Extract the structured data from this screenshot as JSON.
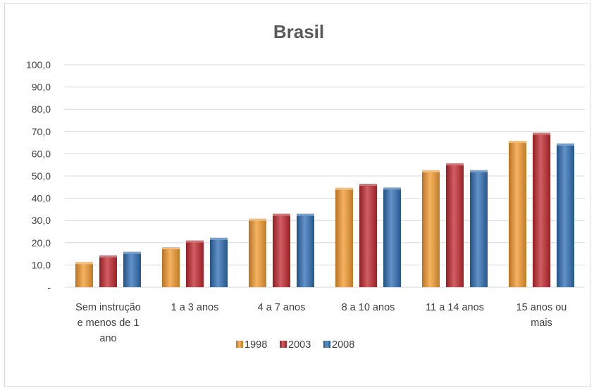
{
  "chart_data": {
    "type": "bar",
    "title": "Brasil",
    "categories": [
      [
        "Sem instrução",
        "e menos de 1",
        "ano"
      ],
      [
        "1 a 3 anos"
      ],
      [
        "4 a 7 anos"
      ],
      [
        "8 a 10 anos"
      ],
      [
        "11 a 14 anos"
      ],
      [
        "15 anos ou",
        "mais"
      ]
    ],
    "series": [
      {
        "name": "1998",
        "color": "#F29A2E",
        "values": [
          11.3,
          18.0,
          30.8,
          44.7,
          52.6,
          65.8
        ]
      },
      {
        "name": "2003",
        "color": "#C0282D",
        "values": [
          14.3,
          21.0,
          33.0,
          46.5,
          55.7,
          69.4
        ]
      },
      {
        "name": "2008",
        "color": "#2E6DB4",
        "values": [
          15.9,
          22.2,
          33.0,
          44.8,
          52.6,
          64.6
        ]
      }
    ],
    "ylim": [
      0,
      100
    ],
    "yticks": [
      "-",
      "10,0",
      "20,0",
      "30,0",
      "40,0",
      "50,0",
      "60,0",
      "70,0",
      "80,0",
      "90,0",
      "100,0"
    ],
    "grid": true,
    "legend_position": "bottom",
    "xlabel": "",
    "ylabel": ""
  }
}
